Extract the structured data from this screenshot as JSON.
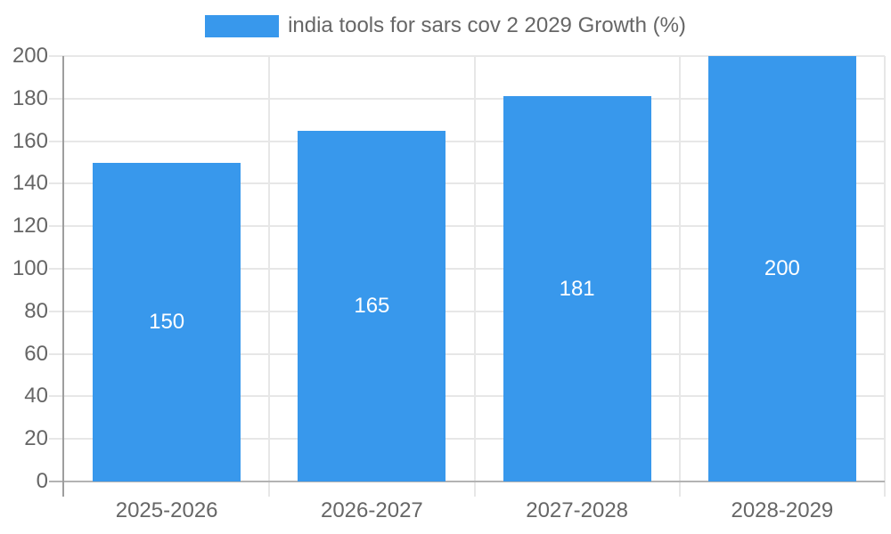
{
  "chart_data": {
    "type": "bar",
    "categories": [
      "2025-2026",
      "2026-2027",
      "2027-2028",
      "2028-2029"
    ],
    "values": [
      150,
      165,
      181,
      200
    ],
    "series_label": "india tools for sars cov 2 2029 Growth (%)",
    "title": "",
    "xlabel": "",
    "ylabel": "",
    "ylim": [
      0,
      200
    ],
    "ytick_step": 20,
    "ytick_labels": [
      "0",
      "20",
      "40",
      "60",
      "80",
      "100",
      "120",
      "140",
      "160",
      "180",
      "200"
    ],
    "value_labels": [
      "150",
      "165",
      "181",
      "200"
    ],
    "grid": true,
    "legend_position": "top",
    "colors": {
      "bar": "#3898ec",
      "grid": "#e7e7e7",
      "axis_line": "#9e9e9e",
      "zero_line": "#b3b3b3",
      "tick_text": "#666666",
      "value_label_text": "#ffffff",
      "background": "#ffffff"
    }
  }
}
